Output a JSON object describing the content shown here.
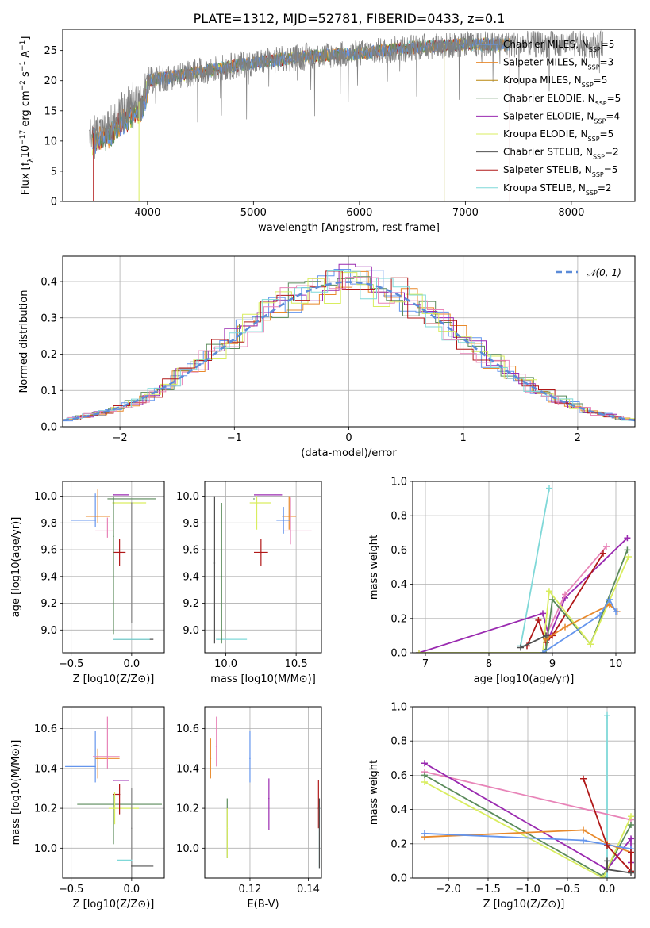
{
  "figure": {
    "title": "PLATE=1312, MJD=52781, FIBERID=0433, z=0.1"
  },
  "colors": {
    "chabrier_miles": "#6495ed",
    "salpeter_miles": "#e8892b",
    "kroupa_miles": "#e8892b",
    "chabrier_elodie": "#5a8a5a",
    "salpeter_elodie": "#9a2ab0",
    "kroupa_elodie": "#d9ed5f",
    "chabrier_stelib": "#505050",
    "salpeter_stelib": "#b01818",
    "kroupa_stelib": "#7fd8d8",
    "pink": "#e884b8",
    "grey_data": "#808080"
  },
  "chart_data": [
    {
      "id": "spectrum",
      "type": "line",
      "xlabel": "wavelength [Angstrom, rest frame]",
      "ylabel": "Flux [f_λ10^-17 erg cm^-2 s^-1 A^-1]",
      "xlim": [
        3200,
        8600
      ],
      "ylim": [
        0,
        28.5
      ],
      "xticks": [
        4000,
        5000,
        6000,
        7000,
        8000
      ],
      "yticks": [
        0,
        5,
        10,
        15,
        20,
        25
      ],
      "continuum": {
        "x": [
          3450,
          3600,
          3800,
          3950,
          4000,
          4200,
          4500,
          5000,
          5500,
          6000,
          6500,
          7000,
          7400
        ],
        "y": [
          11,
          12,
          15,
          17,
          20,
          20.5,
          21.5,
          23,
          24,
          24.5,
          25.5,
          26,
          26
        ]
      },
      "legend": [
        {
          "label": "Chabrier MILES, N",
          "sub": "SSP",
          "suffix": "=5",
          "color": "#6495ed"
        },
        {
          "label": "Salpeter MILES, N",
          "sub": "SSP",
          "suffix": "=3",
          "color": "#e8892b"
        },
        {
          "label": "Kroupa MILES, N",
          "sub": "SSP",
          "suffix": "=5",
          "color": "#b8860b"
        },
        {
          "label": "Chabrier ELODIE, N",
          "sub": "SSP",
          "suffix": "=5",
          "color": "#5a8a5a"
        },
        {
          "label": "Salpeter ELODIE, N",
          "sub": "SSP",
          "suffix": "=4",
          "color": "#9a2ab0"
        },
        {
          "label": "Kroupa ELODIE, N",
          "sub": "SSP",
          "suffix": "=5",
          "color": "#d9ed5f"
        },
        {
          "label": "Chabrier STELIB, N",
          "sub": "SSP",
          "suffix": "=2",
          "color": "#505050"
        },
        {
          "label": "Salpeter STELIB, N",
          "sub": "SSP",
          "suffix": "=5",
          "color": "#b01818"
        },
        {
          "label": "Kroupa STELIB, N",
          "sub": "SSP",
          "suffix": "=2",
          "color": "#7fd8d8"
        }
      ]
    },
    {
      "id": "residuals",
      "type": "line",
      "xlabel": "(data-model)/error",
      "ylabel": "Normed distribution",
      "xlim": [
        -2.5,
        2.5
      ],
      "ylim": [
        0,
        0.47
      ],
      "xticks": [
        -2,
        -1,
        0,
        1,
        2
      ],
      "yticks": [
        0.0,
        0.1,
        0.2,
        0.3,
        0.4
      ],
      "legend": [
        {
          "label": "𝒩(0, 1)",
          "color": "#5b8bd8"
        }
      ],
      "gaussian": {
        "mu": 0,
        "sigma": 1
      }
    },
    {
      "id": "age-vs-Z",
      "type": "scatter",
      "xlabel": "Z [log10(Z/Z⊙)]",
      "ylabel": "age  [log10(age/yr)]",
      "xlim": [
        -0.57,
        0.27
      ],
      "ylim": [
        8.83,
        10.11
      ],
      "xticks": [
        -0.5,
        0.0
      ],
      "yticks": [
        9.0,
        9.2,
        9.4,
        9.6,
        9.8,
        10.0
      ],
      "points": [
        {
          "x": -0.3,
          "xerr": [
            0.2,
            0.0
          ],
          "y": 9.82,
          "yerr": [
            0.05,
            0.2
          ],
          "color": "#6495ed"
        },
        {
          "x": -0.28,
          "xerr": [
            0.1,
            0.1
          ],
          "y": 9.85,
          "yerr": [
            0.05,
            0.2
          ],
          "color": "#e8892b"
        },
        {
          "x": -0.2,
          "xerr": [
            0.1,
            0.05
          ],
          "y": 9.74,
          "yerr": [
            0.05,
            0.1
          ],
          "color": "#e884b8"
        },
        {
          "x": -0.15,
          "xerr": [
            0.05,
            0.35
          ],
          "y": 9.98,
          "yerr": [
            0.01,
            0.01
          ],
          "color": "#5a8a5a"
        },
        {
          "x": -0.15,
          "xerr": [
            0.0,
            0.13
          ],
          "y": 10.01,
          "yerr": [
            0.0,
            0.0
          ],
          "color": "#9a2ab0"
        },
        {
          "x": -0.14,
          "xerr": [
            0.02,
            0.26
          ],
          "y": 9.95,
          "yerr": [
            0.0,
            0.0
          ],
          "color": "#d9ed5f"
        },
        {
          "x": -0.1,
          "xerr": [
            0.05,
            0.05
          ],
          "y": 9.58,
          "yerr": [
            0.1,
            0.1
          ],
          "color": "#b01818"
        },
        {
          "x": 0.0,
          "xerr": [
            0.0,
            0.0
          ],
          "y": 9.95,
          "yerr": [
            0.9,
            0.0
          ],
          "color": "#808080"
        },
        {
          "x": 0.0,
          "xerr": [
            0.15,
            0.18
          ],
          "y": 8.93,
          "yerr": [
            0.0,
            0.0
          ],
          "color": "#505050"
        },
        {
          "x": 0.0,
          "xerr": [
            0.15,
            0.15
          ],
          "y": 8.93,
          "yerr": [
            0.0,
            0.0
          ],
          "color": "#7fd8d8"
        },
        {
          "x": -0.15,
          "xerr": [
            0.0,
            0.0
          ],
          "y": 9.7,
          "yerr": [
            0.73,
            0.3
          ],
          "color": "#5a8a5a"
        }
      ]
    },
    {
      "id": "age-vs-mass",
      "type": "scatter",
      "xlabel": "mass [log10(M/M⊙)]",
      "ylabel": "",
      "xlim": [
        9.85,
        10.68
      ],
      "ylim": [
        8.83,
        10.11
      ],
      "xticks": [
        10.0,
        10.5
      ],
      "yticks": [
        9.0,
        9.2,
        9.4,
        9.6,
        9.8,
        10.0
      ],
      "points": [
        {
          "x": 10.25,
          "xerr": [
            0.05,
            0.05
          ],
          "y": 9.58,
          "yerr": [
            0.1,
            0.1
          ],
          "color": "#b01818"
        },
        {
          "x": 10.22,
          "xerr": [
            0.05,
            0.1
          ],
          "y": 9.95,
          "yerr": [
            0.2,
            0.05
          ],
          "color": "#d9ed5f"
        },
        {
          "x": 10.35,
          "xerr": [
            0.15,
            0.05
          ],
          "y": 10.01,
          "yerr": [
            0.0,
            0.0
          ],
          "color": "#9a2ab0"
        },
        {
          "x": 10.45,
          "xerr": [
            0.05,
            0.05
          ],
          "y": 9.85,
          "yerr": [
            0.1,
            0.15
          ],
          "color": "#e8892b"
        },
        {
          "x": 10.46,
          "xerr": [
            0.05,
            0.15
          ],
          "y": 9.74,
          "yerr": [
            0.1,
            0.25
          ],
          "color": "#e884b8"
        },
        {
          "x": 10.41,
          "xerr": [
            0.05,
            0.05
          ],
          "y": 9.82,
          "yerr": [
            0.1,
            0.1
          ],
          "color": "#6495ed"
        },
        {
          "x": 9.92,
          "xerr": [
            0.0,
            0.0
          ],
          "y": 9.5,
          "yerr": [
            0.6,
            0.5
          ],
          "color": "#505050"
        },
        {
          "x": 9.95,
          "xerr": [
            0.02,
            0.2
          ],
          "y": 8.93,
          "yerr": [
            0.0,
            0.0
          ],
          "color": "#7fd8d8"
        },
        {
          "x": 9.97,
          "xerr": [
            0.0,
            0.0
          ],
          "y": 9.4,
          "yerr": [
            0.5,
            0.55
          ],
          "color": "#5a8a5a"
        },
        {
          "x": 10.2,
          "xerr": [
            0.0,
            0.0
          ],
          "y": 9.98,
          "yerr": [
            0.0,
            0.0
          ],
          "color": "#5a8a5a"
        }
      ]
    },
    {
      "id": "weight-vs-age",
      "type": "line",
      "xlabel": "age  [log10(age/yr)]",
      "ylabel": "mass weight",
      "xlim": [
        6.8,
        10.3
      ],
      "ylim": [
        0.0,
        1.0
      ],
      "xticks": [
        7,
        8,
        9,
        10
      ],
      "yticks": [
        0.0,
        0.2,
        0.4,
        0.6,
        0.8,
        1.0
      ],
      "series": [
        {
          "color": "#7fd8d8",
          "x": [
            8.5,
            8.95
          ],
          "y": [
            0.04,
            0.96
          ]
        },
        {
          "color": "#9a2ab0",
          "x": [
            6.9,
            8.85,
            8.95,
            9.2,
            10.18
          ],
          "y": [
            0.0,
            0.23,
            0.09,
            0.32,
            0.67
          ]
        },
        {
          "color": "#e884b8",
          "x": [
            8.9,
            9.2,
            9.85
          ],
          "y": [
            0.1,
            0.34,
            0.62
          ]
        },
        {
          "color": "#b01818",
          "x": [
            8.6,
            8.78,
            8.9,
            9.0,
            9.8
          ],
          "y": [
            0.04,
            0.19,
            0.06,
            0.1,
            0.58
          ]
        },
        {
          "color": "#5a8a5a",
          "x": [
            8.9,
            9.0,
            9.6,
            10.18
          ],
          "y": [
            0.02,
            0.31,
            0.05,
            0.6
          ]
        },
        {
          "color": "#d9ed5f",
          "x": [
            6.9,
            8.85,
            8.95,
            9.6,
            10.2
          ],
          "y": [
            0.0,
            0.0,
            0.36,
            0.05,
            0.56
          ]
        },
        {
          "color": "#e8892b",
          "x": [
            8.9,
            9.2,
            9.9,
            10.02
          ],
          "y": [
            0.08,
            0.15,
            0.28,
            0.24
          ]
        },
        {
          "color": "#6495ed",
          "x": [
            8.85,
            9.75,
            9.9,
            10.0
          ],
          "y": [
            0.0,
            0.22,
            0.31,
            0.24
          ]
        },
        {
          "color": "#505050",
          "x": [
            8.5,
            8.9
          ],
          "y": [
            0.03,
            0.1
          ]
        }
      ]
    },
    {
      "id": "mass-vs-Z",
      "type": "scatter",
      "xlabel": "Z [log10(Z/Z⊙)]",
      "ylabel": "mass [log10(M/M⊙)]",
      "xlim": [
        -0.57,
        0.27
      ],
      "ylim": [
        9.85,
        10.71
      ],
      "xticks": [
        -0.5,
        0.0
      ],
      "yticks": [
        10.0,
        10.2,
        10.4,
        10.6
      ],
      "points": [
        {
          "x": -0.3,
          "xerr": [
            0.25,
            0.0
          ],
          "y": 10.41,
          "yerr": [
            0.08,
            0.18
          ],
          "color": "#6495ed"
        },
        {
          "x": -0.28,
          "xerr": [
            0.02,
            0.18
          ],
          "y": 10.45,
          "yerr": [
            0.1,
            0.05
          ],
          "color": "#e8892b"
        },
        {
          "x": -0.2,
          "xerr": [
            0.12,
            0.1
          ],
          "y": 10.46,
          "yerr": [
            0.06,
            0.2
          ],
          "color": "#e884b8"
        },
        {
          "x": -0.15,
          "xerr": [
            0.3,
            0.4
          ],
          "y": 10.22,
          "yerr": [
            0.2,
            0.05
          ],
          "color": "#5a8a5a"
        },
        {
          "x": -0.15,
          "xerr": [
            0.0,
            0.13
          ],
          "y": 10.34,
          "yerr": [
            0.0,
            0.0
          ],
          "color": "#9a2ab0"
        },
        {
          "x": -0.14,
          "xerr": [
            0.05,
            0.2
          ],
          "y": 10.2,
          "yerr": [
            0.0,
            0.0
          ],
          "color": "#d9ed5f"
        },
        {
          "x": -0.1,
          "xerr": [
            0.05,
            0.0
          ],
          "y": 10.27,
          "yerr": [
            0.1,
            0.05
          ],
          "color": "#b01818"
        },
        {
          "x": 0.0,
          "xerr": [
            0.0,
            0.0
          ],
          "y": 10.1,
          "yerr": [
            0.25,
            0.2
          ],
          "color": "#808080"
        },
        {
          "x": 0.0,
          "xerr": [
            0.0,
            0.18
          ],
          "y": 9.91,
          "yerr": [
            0.0,
            0.0
          ],
          "color": "#505050"
        },
        {
          "x": 0.0,
          "xerr": [
            0.12,
            0.0
          ],
          "y": 9.94,
          "yerr": [
            0.0,
            0.0
          ],
          "color": "#7fd8d8"
        },
        {
          "x": -0.14,
          "xerr": [
            0.0,
            0.0
          ],
          "y": 10.2,
          "yerr": [
            0.08,
            0.08
          ],
          "color": "#d9ed5f"
        }
      ]
    },
    {
      "id": "mass-vs-ebv",
      "type": "scatter",
      "xlabel": "E(B-V)",
      "ylabel": "",
      "xlim": [
        0.1045,
        0.1445
      ],
      "ylim": [
        9.85,
        10.71
      ],
      "xticks": [
        0.12,
        0.14
      ],
      "yticks": [
        10.0,
        10.2,
        10.4,
        10.6
      ],
      "points": [
        {
          "x": 0.1065,
          "yerr": [
            0.1,
            0.1
          ],
          "y": 10.45,
          "color": "#e8892b"
        },
        {
          "x": 0.1085,
          "yerr": [
            0.1,
            0.15
          ],
          "y": 10.51,
          "color": "#e884b8"
        },
        {
          "x": 0.1122,
          "yerr": [
            0.15,
            0.15
          ],
          "y": 10.1,
          "color": "#5a8a5a"
        },
        {
          "x": 0.1122,
          "yerr": [
            0.15,
            0.1
          ],
          "y": 10.1,
          "color": "#d9ed5f"
        },
        {
          "x": 0.12,
          "yerr": [
            0.12,
            0.14
          ],
          "y": 10.45,
          "color": "#6495ed"
        },
        {
          "x": 0.1265,
          "yerr": [
            0.16,
            0.1
          ],
          "y": 10.25,
          "color": "#9a2ab0"
        },
        {
          "x": 0.1435,
          "yerr": [
            0.1,
            0.14
          ],
          "y": 10.2,
          "color": "#b01818"
        },
        {
          "x": 0.1438,
          "yerr": [
            0.3,
            0.0
          ],
          "y": 10.2,
          "color": "#7fd8d8"
        },
        {
          "x": 0.1438,
          "yerr": [
            0.3,
            0.05
          ],
          "y": 10.2,
          "color": "#505050"
        }
      ]
    },
    {
      "id": "weight-vs-Z",
      "type": "line",
      "xlabel": "Z [log10(Z/Z⊙)]",
      "ylabel": "mass weight",
      "xlim": [
        -2.45,
        0.35
      ],
      "ylim": [
        0.0,
        1.0
      ],
      "xticks": [
        -2.0,
        -1.5,
        -1.0,
        -0.5,
        0.0
      ],
      "yticks": [
        0.0,
        0.2,
        0.4,
        0.6,
        0.8,
        1.0
      ],
      "series": [
        {
          "color": "#7fd8d8",
          "x": [
            0.0,
            0.0
          ],
          "y": [
            0.0,
            0.95
          ]
        },
        {
          "color": "#e884b8",
          "x": [
            -2.3,
            0.3
          ],
          "y": [
            0.62,
            0.34
          ]
        },
        {
          "color": "#9a2ab0",
          "x": [
            -2.3,
            0.0,
            0.3,
            0.3
          ],
          "y": [
            0.67,
            0.05,
            0.23,
            0.09
          ]
        },
        {
          "color": "#5a8a5a",
          "x": [
            -2.3,
            -0.05,
            0.3
          ],
          "y": [
            0.6,
            0.01,
            0.31
          ]
        },
        {
          "color": "#d9ed5f",
          "x": [
            -2.3,
            -0.05,
            0.3
          ],
          "y": [
            0.56,
            0.0,
            0.36
          ]
        },
        {
          "color": "#e8892b",
          "x": [
            -2.3,
            -0.3,
            0.0,
            0.3
          ],
          "y": [
            0.24,
            0.28,
            0.2,
            0.15
          ]
        },
        {
          "color": "#6495ed",
          "x": [
            -2.3,
            -0.3,
            0.3
          ],
          "y": [
            0.26,
            0.22,
            0.17
          ]
        },
        {
          "color": "#b01818",
          "x": [
            -0.3,
            0.0,
            0.3,
            0.3
          ],
          "y": [
            0.58,
            0.19,
            0.04,
            0.15
          ]
        },
        {
          "color": "#505050",
          "x": [
            0.0,
            0.0,
            0.3
          ],
          "y": [
            0.1,
            0.05,
            0.03
          ]
        }
      ]
    }
  ]
}
